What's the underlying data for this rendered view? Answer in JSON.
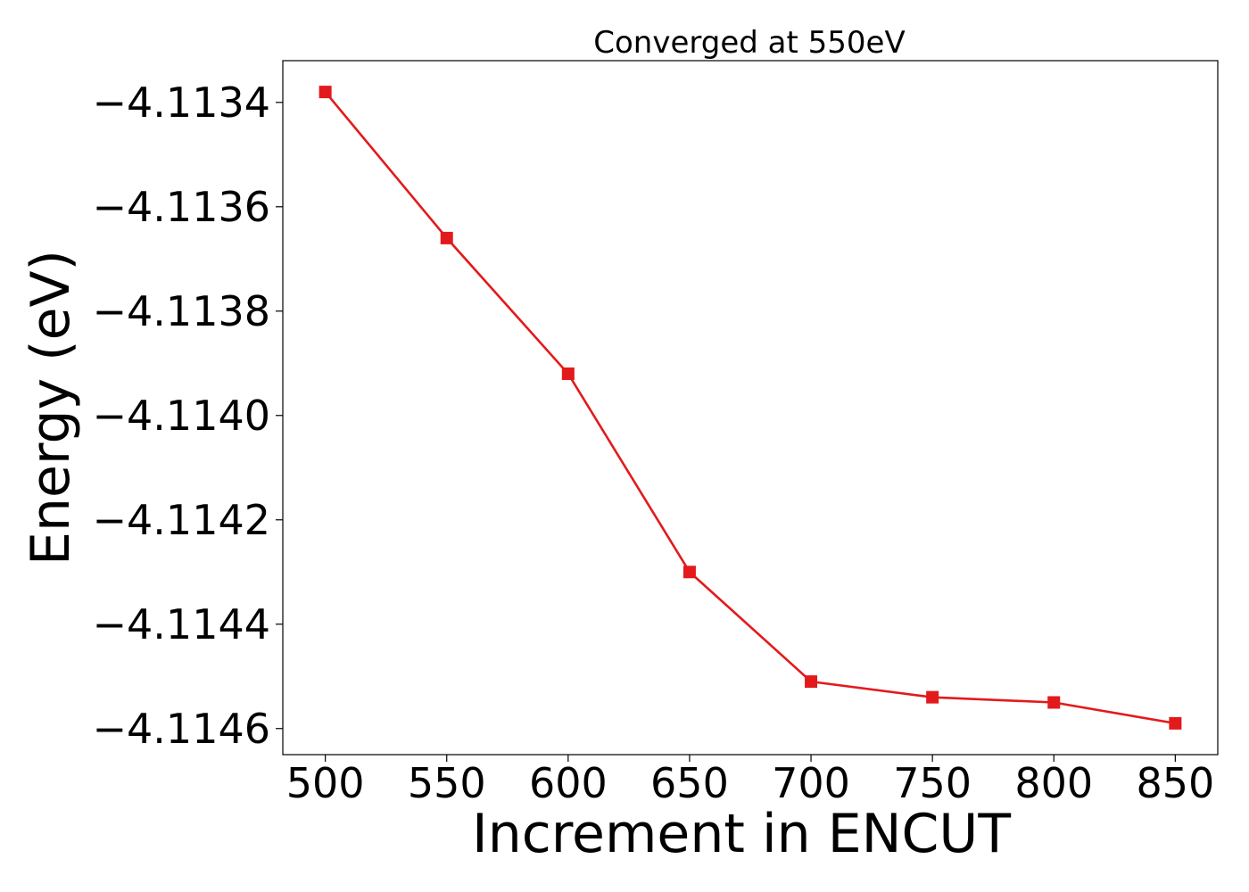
{
  "chart_data": {
    "type": "line",
    "title": "Converged at 550eV",
    "xlabel": "Increment in ENCUT",
    "ylabel": "Energy (eV)",
    "x": [
      500,
      550,
      600,
      650,
      700,
      750,
      800,
      850
    ],
    "series": [
      {
        "values": [
          -4.11338,
          -4.11366,
          -4.11392,
          -4.1143,
          -4.11451,
          -4.11454,
          -4.11455,
          -4.11459
        ],
        "color": "#e31a1c",
        "marker": "square"
      }
    ],
    "xlim": [
      482.5,
      867.5
    ],
    "ylim": [
      -4.11465,
      -4.11332
    ],
    "xticks": [
      500,
      550,
      600,
      650,
      700,
      750,
      800,
      850
    ],
    "xtick_labels": [
      "500",
      "550",
      "600",
      "650",
      "700",
      "750",
      "800",
      "850"
    ],
    "yticks": [
      -4.1134,
      -4.1136,
      -4.1138,
      -4.114,
      -4.1142,
      -4.1144,
      -4.1146
    ],
    "ytick_labels": [
      "−4.1134",
      "−4.1136",
      "−4.1138",
      "−4.1140",
      "−4.1142",
      "−4.1144",
      "−4.1146"
    ],
    "grid": false,
    "legend": "none"
  }
}
